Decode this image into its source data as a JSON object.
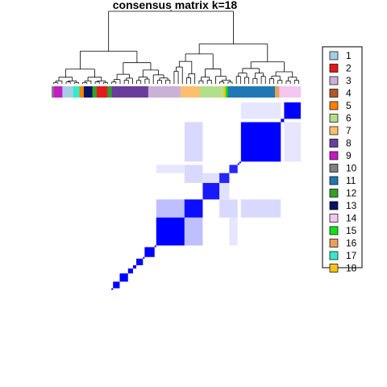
{
  "chart_data": {
    "type": "heatmap",
    "title": "consensus matrix k=18",
    "n_samples": 150,
    "value_range": [
      0,
      1
    ],
    "colors": {
      "low": "#FFFFFF",
      "high": "#0000FF",
      "border": "#000000"
    },
    "legend": {
      "placement": "right",
      "entries": [
        {
          "label": "1",
          "color": "#A6CEE3"
        },
        {
          "label": "2",
          "color": "#E31A1C"
        },
        {
          "label": "3",
          "color": "#CAB2D6"
        },
        {
          "label": "4",
          "color": "#B15928"
        },
        {
          "label": "5",
          "color": "#FF7F00"
        },
        {
          "label": "6",
          "color": "#B2DF8A"
        },
        {
          "label": "7",
          "color": "#FDBF6F"
        },
        {
          "label": "8",
          "color": "#6A3D9A"
        },
        {
          "label": "9",
          "color": "#C51BC5"
        },
        {
          "label": "10",
          "color": "#808080"
        },
        {
          "label": "11",
          "color": "#1F78B4"
        },
        {
          "label": "12",
          "color": "#33A02C"
        },
        {
          "label": "13",
          "color": "#0B1366"
        },
        {
          "label": "14",
          "color": "#F4C6F0"
        },
        {
          "label": "15",
          "color": "#14E01A"
        },
        {
          "label": "16",
          "color": "#E8A05A"
        },
        {
          "label": "17",
          "color": "#35EACB"
        },
        {
          "label": "18",
          "color": "#F6C21A"
        }
      ]
    },
    "annotation_bar": [
      {
        "cluster": "10",
        "samples": 1
      },
      {
        "cluster": "9",
        "samples": 4
      },
      {
        "cluster": "1",
        "samples": 5
      },
      {
        "cluster": "17",
        "samples": 3
      },
      {
        "cluster": "5",
        "samples": 2
      },
      {
        "cluster": "13",
        "samples": 4
      },
      {
        "cluster": "12",
        "samples": 2
      },
      {
        "cluster": "2",
        "samples": 5
      },
      {
        "cluster": "12",
        "samples": 2
      },
      {
        "cluster": "8",
        "samples": 17
      },
      {
        "cluster": "3",
        "samples": 15
      },
      {
        "cluster": "7",
        "samples": 9
      },
      {
        "cluster": "6",
        "samples": 11
      },
      {
        "cluster": "18",
        "samples": 1
      },
      {
        "cluster": "15",
        "samples": 1
      },
      {
        "cluster": "11",
        "samples": 22
      },
      {
        "cluster": "16",
        "samples": 2
      },
      {
        "cluster": "14",
        "samples": 10
      }
    ],
    "blocks": [
      {
        "cluster": "14",
        "start": 0,
        "size": 10,
        "value": 1.0
      },
      {
        "cluster": "16",
        "start": 10,
        "size": 2,
        "value": 1.0
      },
      {
        "cluster": "11",
        "start": 12,
        "size": 24,
        "value": 1.0
      },
      {
        "cluster": "15",
        "start": 36,
        "size": 1,
        "value": 1.0
      },
      {
        "cluster": "18",
        "start": 37,
        "size": 1,
        "value": 1.0
      },
      {
        "cluster": "6",
        "start": 38,
        "size": 5,
        "value": 0.85
      },
      {
        "cluster": "7",
        "start": 43,
        "size": 6,
        "value": 0.85
      },
      {
        "cluster": "6",
        "start": 49,
        "size": 10,
        "value": 0.9
      },
      {
        "cluster": "3",
        "start": 59,
        "size": 11,
        "value": 0.95
      },
      {
        "cluster": "8",
        "start": 70,
        "size": 17,
        "value": 1.0
      },
      {
        "cluster": "12",
        "start": 87,
        "size": 1,
        "value": 1.0
      },
      {
        "cluster": "2",
        "start": 88,
        "size": 6,
        "value": 1.0
      },
      {
        "cluster": "12",
        "start": 94,
        "size": 1,
        "value": 1.0
      },
      {
        "cluster": "13",
        "start": 95,
        "size": 4,
        "value": 1.0
      },
      {
        "cluster": "5",
        "start": 99,
        "size": 2,
        "value": 1.0
      },
      {
        "cluster": "17",
        "start": 101,
        "size": 3,
        "value": 1.0
      },
      {
        "cluster": "1",
        "start": 104,
        "size": 5,
        "value": 1.0
      },
      {
        "cluster": "9",
        "start": 109,
        "size": 4,
        "value": 1.0
      },
      {
        "cluster": "10",
        "start": 113,
        "size": 1,
        "value": 1.0
      }
    ],
    "off_diagonal": [
      {
        "a": [
          12,
          36
        ],
        "b": [
          59,
          70
        ],
        "value": 0.15
      },
      {
        "a": [
          12,
          36
        ],
        "b": [
          0,
          10
        ],
        "value": 0.1
      },
      {
        "a": [
          59,
          70
        ],
        "b": [
          70,
          87
        ],
        "value": 0.25
      },
      {
        "a": [
          59,
          70
        ],
        "b": [
          38,
          49
        ],
        "value": 0.15
      },
      {
        "a": [
          70,
          87
        ],
        "b": [
          38,
          43
        ],
        "value": 0.1
      },
      {
        "a": [
          43,
          49
        ],
        "b": [
          49,
          59
        ],
        "value": 0.12
      }
    ],
    "xlabel": "",
    "ylabel": ""
  }
}
